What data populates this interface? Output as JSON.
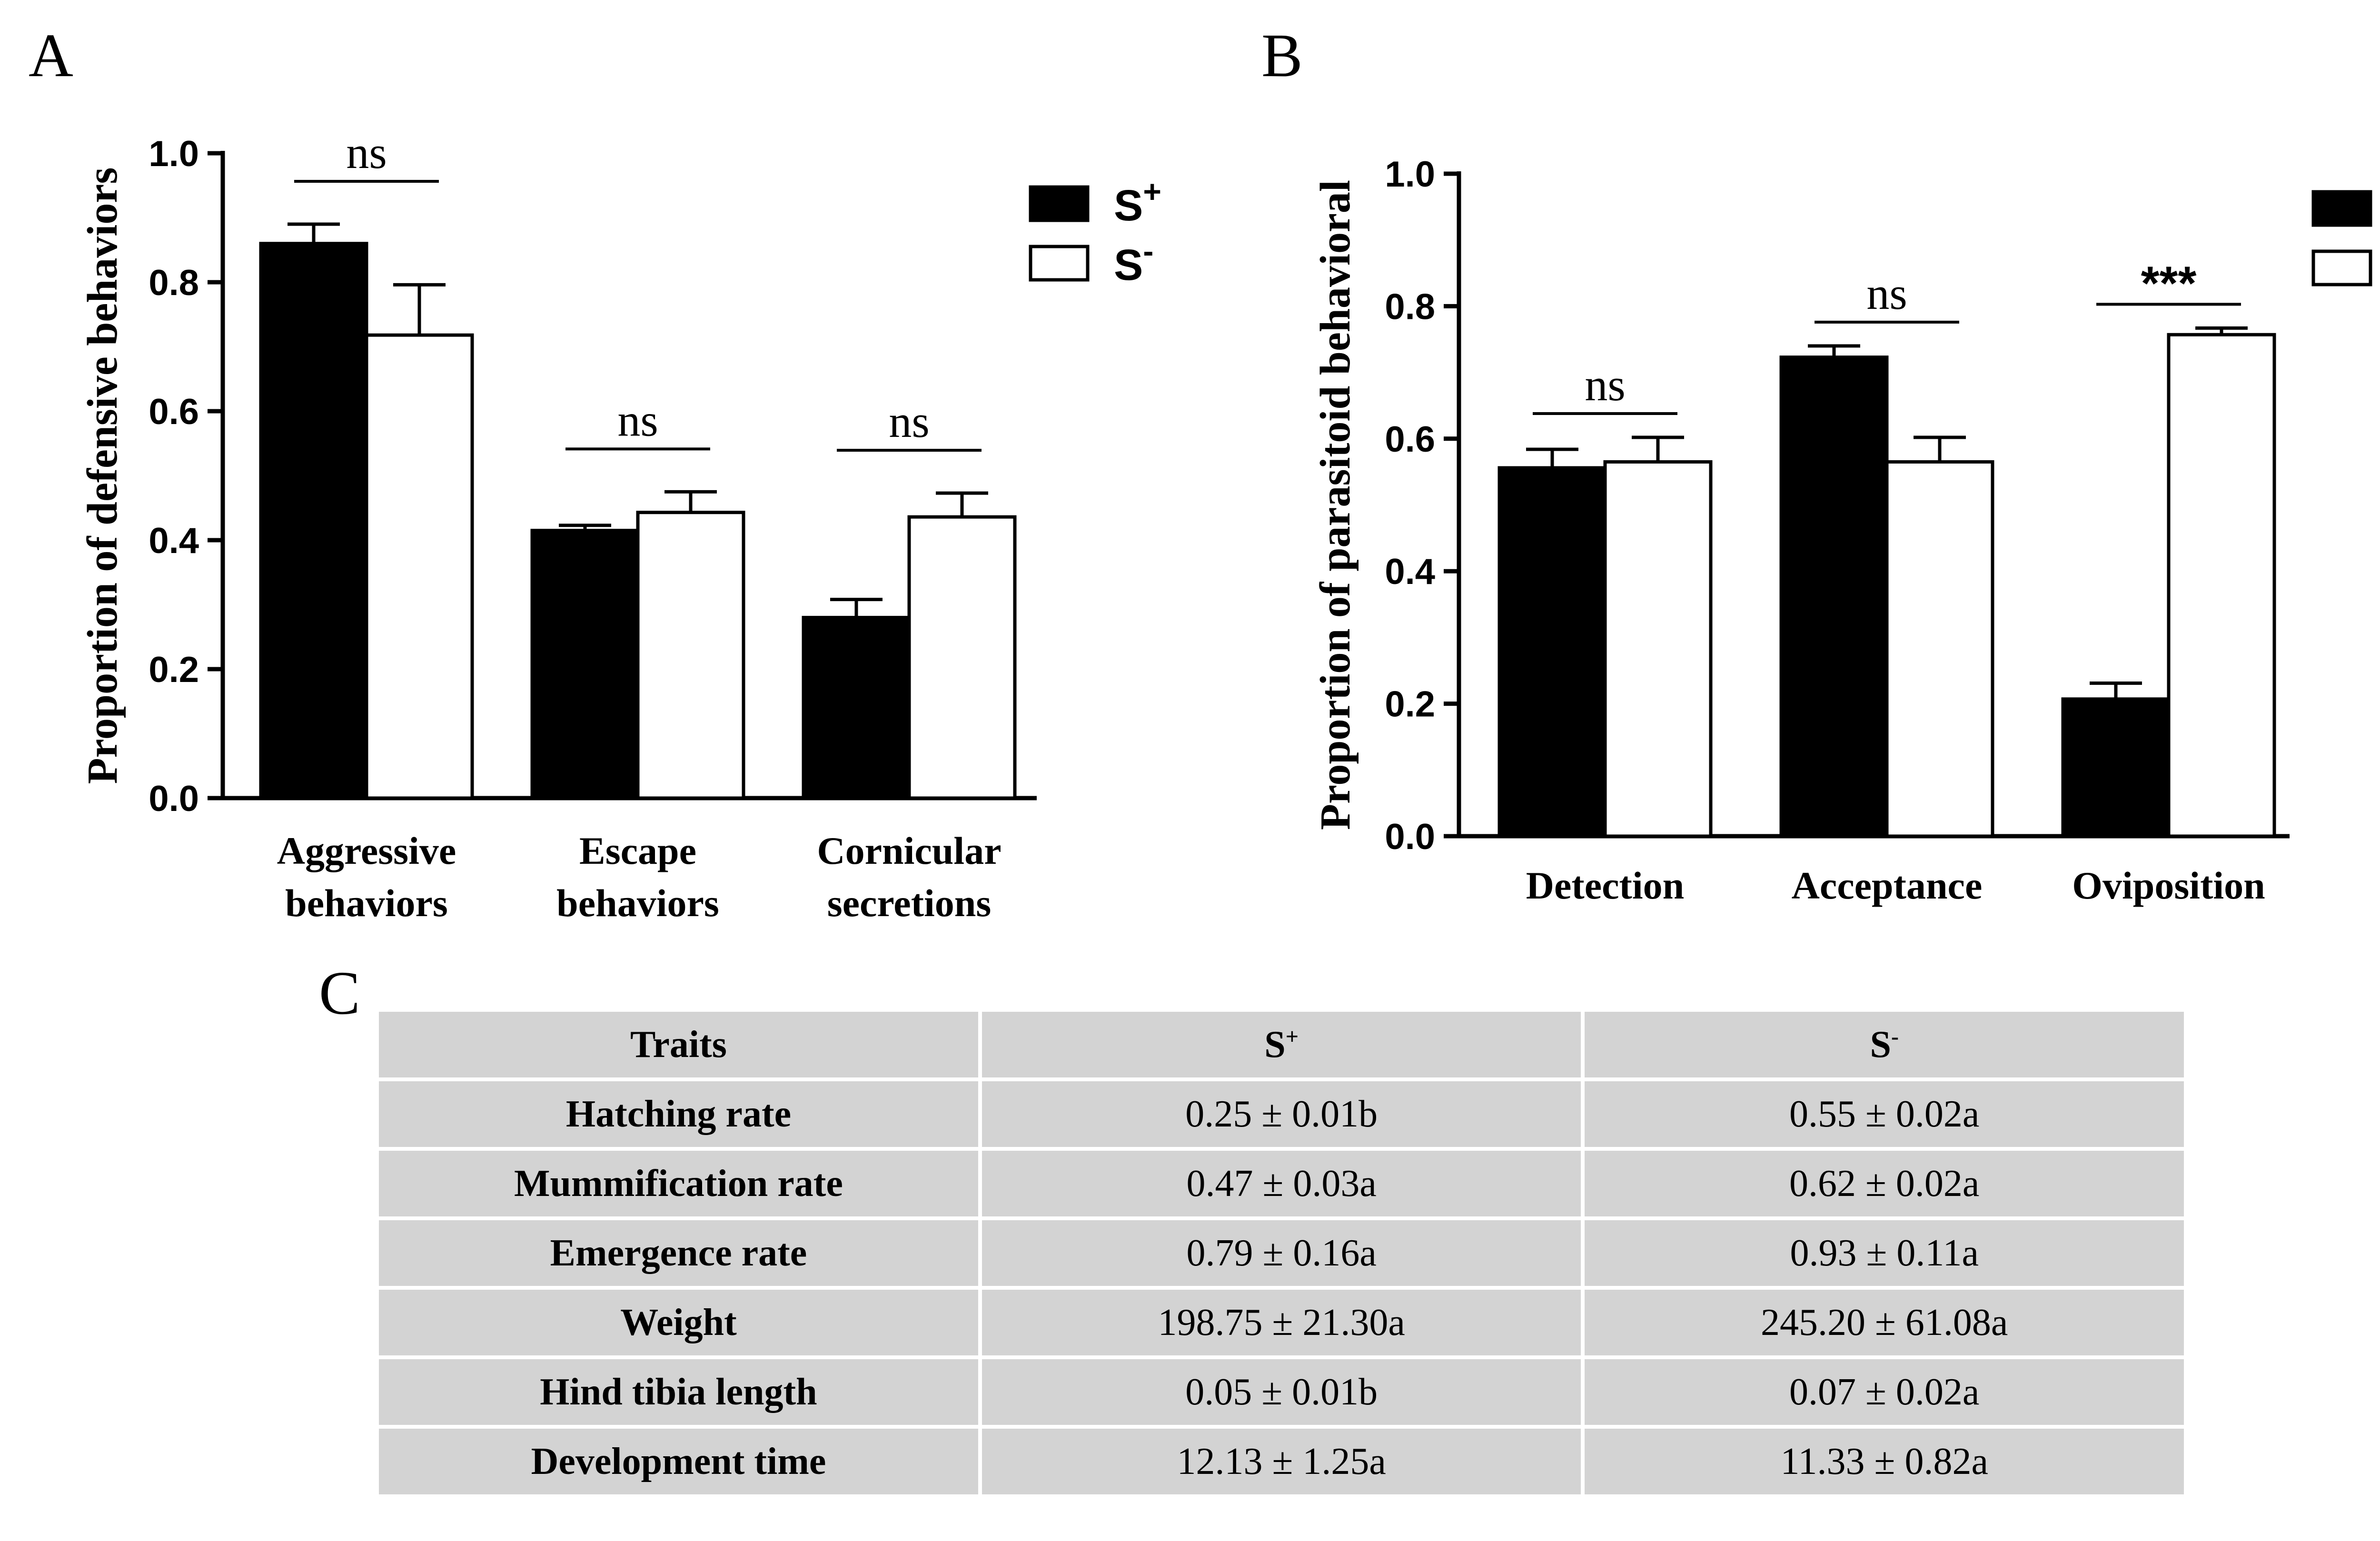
{
  "panels": {
    "A": "A",
    "B": "B",
    "C": "C"
  },
  "legend": {
    "s_plus": {
      "base": "S",
      "sup": "+"
    },
    "s_minus": {
      "base": "S",
      "sup": "-"
    }
  },
  "colors": {
    "s_plus": "#000000",
    "s_minus": "#ffffff",
    "table_cell": "#d3d3d3"
  },
  "chart_data": [
    {
      "panel": "A",
      "type": "bar",
      "ylabel": "Proportion of defensive behaviors",
      "ylim": [
        0,
        1.0
      ],
      "yticks": [
        "0.0",
        "0.2",
        "0.4",
        "0.6",
        "0.8",
        "1.0"
      ],
      "yticks_values": [
        0,
        0.2,
        0.4,
        0.6,
        0.8,
        1.0
      ],
      "categories": [
        [
          "Aggressive",
          "behaviors"
        ],
        [
          "Escape",
          "behaviors"
        ],
        [
          "Cornicular",
          "secretions"
        ]
      ],
      "series": [
        {
          "name": "S+",
          "values": [
            0.86,
            0.415,
            0.28
          ],
          "errors": [
            0.03,
            0.008,
            0.028
          ]
        },
        {
          "name": "S-",
          "values": [
            0.718,
            0.443,
            0.436
          ],
          "errors": [
            0.078,
            0.032,
            0.037
          ]
        }
      ],
      "significance": [
        "ns",
        "ns",
        "ns"
      ],
      "legend_position": "top-right",
      "grid": false
    },
    {
      "panel": "B",
      "type": "bar",
      "ylabel": "Proportion of parasitoid behavioral",
      "ylim": [
        0,
        1.0
      ],
      "yticks": [
        "0.0",
        "0.2",
        "0.4",
        "0.6",
        "0.8",
        "1.0"
      ],
      "yticks_values": [
        0,
        0.2,
        0.4,
        0.6,
        0.8,
        1.0
      ],
      "categories": [
        [
          "Detection"
        ],
        [
          "Acceptance"
        ],
        [
          "Oviposition"
        ]
      ],
      "series": [
        {
          "name": "S+",
          "values": [
            0.556,
            0.723,
            0.207
          ],
          "errors": [
            0.028,
            0.017,
            0.024
          ]
        },
        {
          "name": "S-",
          "values": [
            0.565,
            0.565,
            0.757
          ],
          "errors": [
            0.037,
            0.037,
            0.01
          ]
        }
      ],
      "significance": [
        "ns",
        "ns",
        "***"
      ],
      "legend_position": "top-right",
      "grid": false
    },
    {
      "panel": "C",
      "type": "table",
      "headers": [
        {
          "text": "Traits",
          "sup": ""
        },
        {
          "text": "S",
          "sup": "+"
        },
        {
          "text": "S",
          "sup": "-"
        }
      ],
      "rows": [
        [
          "Hatching rate",
          "0.25 ± 0.01b",
          "0.55 ± 0.02a"
        ],
        [
          "Mummification rate",
          "0.47 ± 0.03a",
          "0.62 ± 0.02a"
        ],
        [
          "Emergence rate",
          "0.79 ± 0.16a",
          "0.93 ± 0.11a"
        ],
        [
          "Weight",
          "198.75 ± 21.30a",
          "245.20 ± 61.08a"
        ],
        [
          "Hind tibia length",
          "0.05 ± 0.01b",
          "0.07 ± 0.02a"
        ],
        [
          "Development time",
          "12.13 ± 1.25a",
          "11.33 ± 0.82a"
        ]
      ]
    }
  ]
}
